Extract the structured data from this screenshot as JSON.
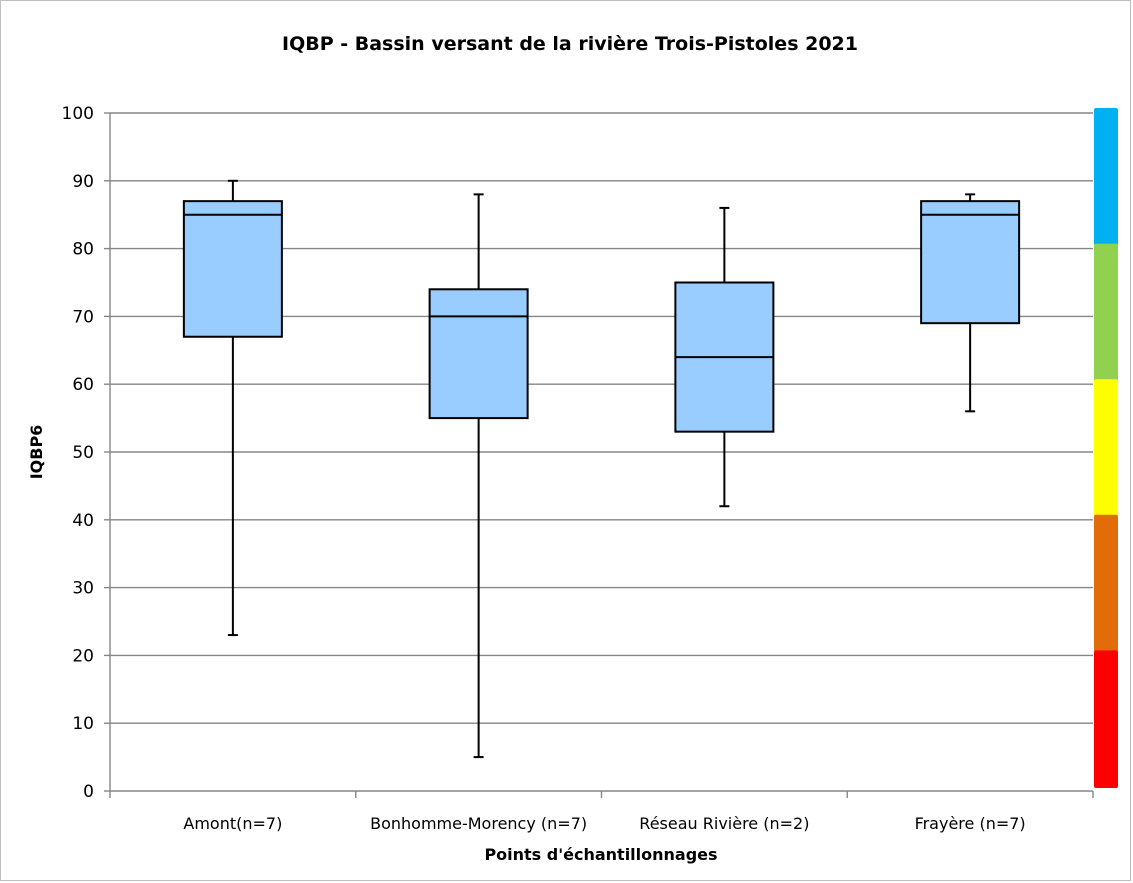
{
  "chart_data": {
    "type": "boxplot",
    "title": "IQBP - Bassin versant de la rivière Trois-Pistoles 2021",
    "xlabel": "Points d'échantillonnages",
    "ylabel": "IQBP6",
    "ylim": [
      0,
      100
    ],
    "yticks": [
      "0",
      "10",
      "20",
      "30",
      "40",
      "50",
      "60",
      "70",
      "80",
      "90",
      "100"
    ],
    "grid": true,
    "categories": [
      "Amont(n=7)",
      "Bonhomme-Morency (n=7)",
      "Réseau Rivière (n=2)",
      "Frayère (n=7)"
    ],
    "boxes": [
      {
        "min": 23,
        "q1": 67,
        "median": 85,
        "q3": 87,
        "max": 90
      },
      {
        "min": 5,
        "q1": 55,
        "median": 70,
        "q3": 74,
        "max": 88
      },
      {
        "min": 42,
        "q1": 53,
        "median": 64,
        "q3": 75,
        "max": 86
      },
      {
        "min": 56,
        "q1": 69,
        "median": 85,
        "q3": 87,
        "max": 88
      }
    ],
    "box_color": "#99ccff",
    "quality_bands": [
      {
        "from": 80,
        "to": 100,
        "color": "#00b0f0"
      },
      {
        "from": 60,
        "to": 80,
        "color": "#92d050"
      },
      {
        "from": 40,
        "to": 60,
        "color": "#ffff00"
      },
      {
        "from": 20,
        "to": 40,
        "color": "#e36c0a"
      },
      {
        "from": 0,
        "to": 20,
        "color": "#ff0000"
      }
    ]
  }
}
